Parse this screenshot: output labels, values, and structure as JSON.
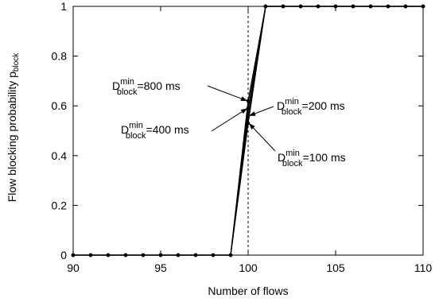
{
  "chart_data": {
    "type": "line",
    "xlabel": "Number of flows",
    "ylabel_main": "Flow blocking probability p",
    "ylabel_sub": "block",
    "xlim": [
      90,
      110
    ],
    "ylim": [
      0,
      1
    ],
    "xticks": [
      90,
      95,
      100,
      105,
      110
    ],
    "yticks": [
      0,
      0.2,
      0.4,
      0.6,
      0.8,
      1
    ],
    "xtick_labels": [
      "90",
      "95",
      "100",
      "105",
      "110"
    ],
    "ytick_labels": [
      "0",
      "0.2",
      "0.4",
      "0.6",
      "0.8",
      "1"
    ],
    "grid": false,
    "vline_x": 100,
    "series": [
      {
        "label": "800 ms",
        "x": [
          90,
          91,
          92,
          93,
          94,
          95,
          96,
          97,
          98,
          99,
          100,
          101,
          102,
          103,
          104,
          105,
          106,
          107,
          108,
          109,
          110
        ],
        "y": [
          0,
          0,
          0,
          0,
          0,
          0,
          0,
          0,
          0,
          0,
          0.62,
          1,
          1,
          1,
          1,
          1,
          1,
          1,
          1,
          1,
          1
        ]
      },
      {
        "label": "400 ms",
        "x": [
          90,
          91,
          92,
          93,
          94,
          95,
          96,
          97,
          98,
          99,
          100,
          101,
          102,
          103,
          104,
          105,
          106,
          107,
          108,
          109,
          110
        ],
        "y": [
          0,
          0,
          0,
          0,
          0,
          0,
          0,
          0,
          0,
          0,
          0.59,
          1,
          1,
          1,
          1,
          1,
          1,
          1,
          1,
          1,
          1
        ]
      },
      {
        "label": "200 ms",
        "x": [
          90,
          91,
          92,
          93,
          94,
          95,
          96,
          97,
          98,
          99,
          100,
          101,
          102,
          103,
          104,
          105,
          106,
          107,
          108,
          109,
          110
        ],
        "y": [
          0,
          0,
          0,
          0,
          0,
          0,
          0,
          0,
          0,
          0,
          0.56,
          1,
          1,
          1,
          1,
          1,
          1,
          1,
          1,
          1,
          1
        ]
      },
      {
        "label": "100 ms",
        "x": [
          90,
          91,
          92,
          93,
          94,
          95,
          96,
          97,
          98,
          99,
          100,
          101,
          102,
          103,
          104,
          105,
          106,
          107,
          108,
          109,
          110
        ],
        "y": [
          0,
          0,
          0,
          0,
          0,
          0,
          0,
          0,
          0,
          0,
          0.53,
          1,
          1,
          1,
          1,
          1,
          1,
          1,
          1,
          1,
          1
        ]
      }
    ],
    "annotations": [
      {
        "base": "D",
        "sup": "min",
        "sub": "block",
        "value": "=800 ms"
      },
      {
        "base": "D",
        "sup": "min",
        "sub": "block",
        "value": "=400 ms"
      },
      {
        "base": "D",
        "sup": "min",
        "sub": "block",
        "value": "=200 ms"
      },
      {
        "base": "D",
        "sup": "min",
        "sub": "block",
        "value": "=100 ms"
      }
    ]
  }
}
